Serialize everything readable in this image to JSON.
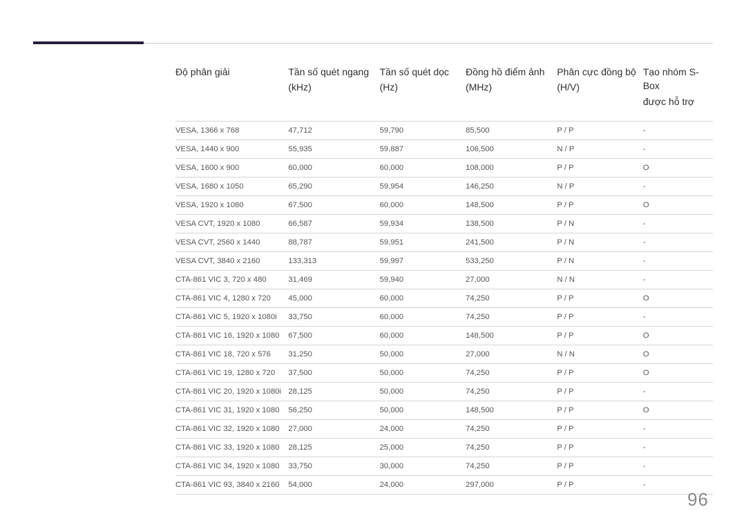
{
  "page_number": "96",
  "accent_color": "#2b1f3d",
  "rule_color": "#c8c8c8",
  "row_border_color": "#d5d5d5",
  "header_text_color": "#2f2f2f",
  "cell_text_color": "#555555",
  "page_num_color": "#8a8a8a",
  "headers": [
    {
      "label": "Độ phân giải",
      "unit": ""
    },
    {
      "label": "Tần số quét ngang",
      "unit": "(kHz)"
    },
    {
      "label": "Tần số quét dọc",
      "unit": "(Hz)"
    },
    {
      "label": "Đồng hồ điểm ảnh",
      "unit": "(MHz)"
    },
    {
      "label": "Phân cực đồng bộ",
      "unit": "(H/V)"
    },
    {
      "label": "Tạo nhóm S-Box",
      "unit": "được hỗ trợ"
    }
  ],
  "rows": [
    [
      "VESA, 1366 x 768",
      "47,712",
      "59,790",
      "85,500",
      "P / P",
      "-"
    ],
    [
      "VESA, 1440 x 900",
      "55,935",
      "59,887",
      "106,500",
      "N / P",
      "-"
    ],
    [
      "VESA, 1600 x 900",
      "60,000",
      "60,000",
      "108,000",
      "P / P",
      "O"
    ],
    [
      "VESA, 1680 x 1050",
      "65,290",
      "59,954",
      "146,250",
      "N / P",
      "-"
    ],
    [
      "VESA, 1920 x 1080",
      "67,500",
      "60,000",
      "148,500",
      "P / P",
      "O"
    ],
    [
      "VESA CVT, 1920 x 1080",
      "66,587",
      "59,934",
      "138,500",
      "P / N",
      "-"
    ],
    [
      "VESA CVT, 2560 x 1440",
      "88,787",
      "59,951",
      "241,500",
      "P / N",
      "-"
    ],
    [
      "VESA CVT, 3840 x 2160",
      "133,313",
      "59,997",
      "533,250",
      "P / N",
      "-"
    ],
    [
      "CTA-861 VIC 3, 720 x 480",
      "31,469",
      "59,940",
      "27,000",
      "N / N",
      "-"
    ],
    [
      "CTA-861 VIC 4, 1280 x 720",
      "45,000",
      "60,000",
      "74,250",
      "P / P",
      "O"
    ],
    [
      "CTA-861 VIC 5, 1920 x 1080i",
      "33,750",
      "60,000",
      "74,250",
      "P / P",
      "-"
    ],
    [
      "CTA-861 VIC 16, 1920 x 1080",
      "67,500",
      "60,000",
      "148,500",
      "P / P",
      "O"
    ],
    [
      "CTA-861 VIC 18, 720 x 576",
      "31,250",
      "50,000",
      "27,000",
      "N / N",
      "O"
    ],
    [
      "CTA-861 VIC 19, 1280 x 720",
      "37,500",
      "50,000",
      "74,250",
      "P / P",
      "O"
    ],
    [
      "CTA-861 VIC 20, 1920 x 1080i",
      "28,125",
      "50,000",
      "74,250",
      "P / P",
      "-"
    ],
    [
      "CTA-861 VIC 31, 1920 x 1080",
      "56,250",
      "50,000",
      "148,500",
      "P / P",
      "O"
    ],
    [
      "CTA-861 VIC 32, 1920 x 1080",
      "27,000",
      "24,000",
      "74,250",
      "P / P",
      "-"
    ],
    [
      "CTA-861 VIC 33, 1920 x 1080",
      "28,125",
      "25,000",
      "74,250",
      "P / P",
      "-"
    ],
    [
      "CTA-861 VIC 34, 1920 x 1080",
      "33,750",
      "30,000",
      "74,250",
      "P / P",
      "-"
    ],
    [
      "CTA-861 VIC 93, 3840 x 2160",
      "54,000",
      "24,000",
      "297,000",
      "P / P",
      "-"
    ]
  ]
}
